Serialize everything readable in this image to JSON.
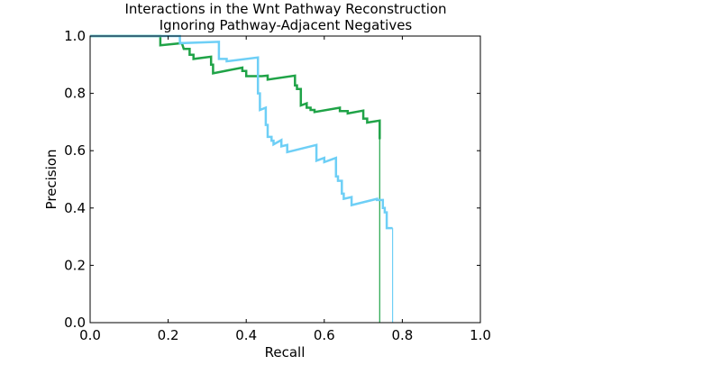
{
  "chart_data": {
    "type": "line",
    "title": "Interactions in the Wnt Pathway Reconstruction",
    "subtitle": "Ignoring Pathway-Adjacent Negatives",
    "xlabel": "Recall",
    "ylabel": "Precision",
    "xlim": [
      0,
      1
    ],
    "ylim": [
      0,
      1
    ],
    "x_ticks": [
      "0.0",
      "0.2",
      "0.4",
      "0.6",
      "0.8",
      "1.0"
    ],
    "y_ticks": [
      "0.0",
      "0.2",
      "0.4",
      "0.6",
      "0.8",
      "1.0"
    ],
    "grid": false,
    "legend": "none",
    "series": [
      {
        "color": "#1fa347",
        "points": [
          [
            0.0,
            1.0
          ],
          [
            0.18,
            1.0
          ],
          [
            0.18,
            0.968
          ],
          [
            0.235,
            0.975
          ],
          [
            0.24,
            0.955
          ],
          [
            0.255,
            0.955
          ],
          [
            0.255,
            0.935
          ],
          [
            0.265,
            0.935
          ],
          [
            0.265,
            0.92
          ],
          [
            0.31,
            0.928
          ],
          [
            0.31,
            0.9
          ],
          [
            0.315,
            0.9
          ],
          [
            0.315,
            0.87
          ],
          [
            0.39,
            0.89
          ],
          [
            0.39,
            0.878
          ],
          [
            0.4,
            0.878
          ],
          [
            0.4,
            0.86
          ],
          [
            0.43,
            0.86
          ],
          [
            0.44,
            0.86
          ],
          [
            0.455,
            0.862
          ],
          [
            0.455,
            0.848
          ],
          [
            0.525,
            0.862
          ],
          [
            0.525,
            0.828
          ],
          [
            0.53,
            0.828
          ],
          [
            0.53,
            0.815
          ],
          [
            0.54,
            0.815
          ],
          [
            0.54,
            0.758
          ],
          [
            0.555,
            0.765
          ],
          [
            0.555,
            0.75
          ],
          [
            0.565,
            0.75
          ],
          [
            0.565,
            0.742
          ],
          [
            0.575,
            0.742
          ],
          [
            0.575,
            0.735
          ],
          [
            0.64,
            0.75
          ],
          [
            0.64,
            0.738
          ],
          [
            0.66,
            0.738
          ],
          [
            0.66,
            0.73
          ],
          [
            0.7,
            0.74
          ],
          [
            0.7,
            0.712
          ],
          [
            0.71,
            0.712
          ],
          [
            0.71,
            0.698
          ],
          [
            0.742,
            0.705
          ],
          [
            0.742,
            0.64
          ],
          [
            0.742,
            0.0
          ]
        ]
      },
      {
        "color": "#6ecff6",
        "points": [
          [
            0.0,
            1.0
          ],
          [
            0.23,
            1.0
          ],
          [
            0.23,
            0.975
          ],
          [
            0.33,
            0.98
          ],
          [
            0.33,
            0.92
          ],
          [
            0.35,
            0.92
          ],
          [
            0.35,
            0.912
          ],
          [
            0.43,
            0.925
          ],
          [
            0.43,
            0.8
          ],
          [
            0.435,
            0.8
          ],
          [
            0.435,
            0.742
          ],
          [
            0.45,
            0.75
          ],
          [
            0.45,
            0.69
          ],
          [
            0.455,
            0.69
          ],
          [
            0.455,
            0.648
          ],
          [
            0.465,
            0.648
          ],
          [
            0.465,
            0.635
          ],
          [
            0.47,
            0.635
          ],
          [
            0.47,
            0.622
          ],
          [
            0.49,
            0.637
          ],
          [
            0.49,
            0.615
          ],
          [
            0.505,
            0.62
          ],
          [
            0.505,
            0.595
          ],
          [
            0.58,
            0.62
          ],
          [
            0.58,
            0.565
          ],
          [
            0.6,
            0.575
          ],
          [
            0.6,
            0.56
          ],
          [
            0.63,
            0.575
          ],
          [
            0.63,
            0.51
          ],
          [
            0.635,
            0.51
          ],
          [
            0.635,
            0.495
          ],
          [
            0.645,
            0.495
          ],
          [
            0.645,
            0.45
          ],
          [
            0.65,
            0.45
          ],
          [
            0.65,
            0.432
          ],
          [
            0.67,
            0.438
          ],
          [
            0.67,
            0.41
          ],
          [
            0.735,
            0.432
          ],
          [
            0.735,
            0.428
          ],
          [
            0.75,
            0.428
          ],
          [
            0.75,
            0.4
          ],
          [
            0.755,
            0.4
          ],
          [
            0.755,
            0.385
          ],
          [
            0.76,
            0.385
          ],
          [
            0.76,
            0.33
          ],
          [
            0.775,
            0.33
          ],
          [
            0.775,
            0.0
          ]
        ]
      }
    ]
  }
}
